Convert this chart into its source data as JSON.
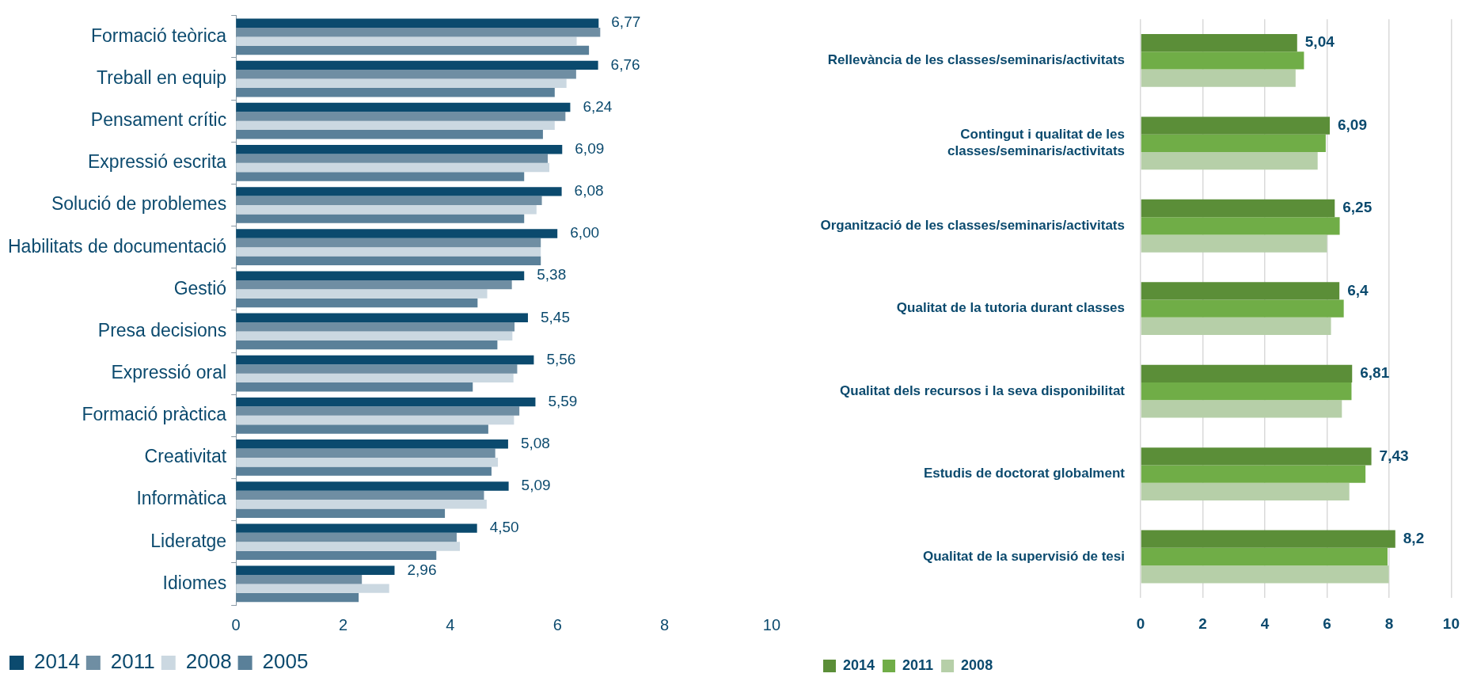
{
  "chart_data": [
    {
      "type": "bar",
      "orientation": "horizontal",
      "categories": [
        "Formació teòrica",
        "Treball en equip",
        "Pensament crític",
        "Expressió escrita",
        "Solució de problemes",
        "Habilitats de documentació",
        "Gestió",
        "Presa decisions",
        "Expressió oral",
        "Formació pràctica",
        "Creativitat",
        "Informàtica",
        "Lideratge",
        "Idiomes"
      ],
      "series": [
        {
          "name": "2014",
          "color": "#0b4a6e",
          "values": [
            6.77,
            6.76,
            6.24,
            6.09,
            6.08,
            6.0,
            5.38,
            5.45,
            5.56,
            5.59,
            5.08,
            5.09,
            4.5,
            2.96
          ],
          "value_labels": [
            "6,77",
            "6,76",
            "6,24",
            "6,09",
            "6,08",
            "6,00",
            "5,38",
            "5,45",
            "5,56",
            "5,59",
            "5,08",
            "5,09",
            "4,50",
            "2,96"
          ]
        },
        {
          "name": "2011",
          "color": "#6f8ea3",
          "values": [
            6.8,
            6.35,
            6.15,
            5.82,
            5.71,
            5.69,
            5.15,
            5.2,
            5.25,
            5.29,
            4.84,
            4.63,
            4.12,
            2.35
          ]
        },
        {
          "name": "2008",
          "color": "#cbd8e1",
          "values": [
            6.36,
            6.17,
            5.95,
            5.85,
            5.61,
            5.69,
            4.69,
            5.16,
            5.18,
            5.19,
            4.89,
            4.68,
            4.18,
            2.86
          ]
        },
        {
          "name": "2005",
          "color": "#5a8099",
          "values": [
            6.59,
            5.95,
            5.73,
            5.38,
            5.38,
            5.69,
            4.51,
            4.88,
            4.42,
            4.71,
            4.77,
            3.9,
            3.74,
            2.29
          ]
        }
      ],
      "xlim": [
        0,
        10
      ],
      "xticks": [
        0,
        2,
        4,
        6,
        8,
        10
      ],
      "grid": false,
      "legend": "bottom"
    },
    {
      "type": "bar",
      "orientation": "horizontal",
      "categories": [
        "Rellevància de les classes/seminaris/activitats",
        "Contingut i qualitat de les\nclasses/seminaris/activitats",
        "Organització de les classes/seminaris/activitats",
        "Qualitat de la tutoria durant classes",
        "Qualitat dels recursos i la seva disponibilitat",
        "Estudis de doctorat globalment",
        "Qualitat de la supervisió de tesi"
      ],
      "series": [
        {
          "name": "2014",
          "color": "#5b8e38",
          "values": [
            5.04,
            6.09,
            6.25,
            6.4,
            6.81,
            7.43,
            8.2
          ],
          "value_labels": [
            "5,04",
            "6,09",
            "6,25",
            "6,4",
            "6,81",
            "7,43",
            "8,2"
          ]
        },
        {
          "name": "2011",
          "color": "#70ad47",
          "values": [
            5.26,
            5.96,
            6.41,
            6.54,
            6.79,
            7.24,
            7.95
          ]
        },
        {
          "name": "2008",
          "color": "#b6cfa8",
          "values": [
            4.99,
            5.7,
            6.0,
            6.13,
            6.48,
            6.72,
            7.99
          ]
        }
      ],
      "xlim": [
        0,
        10
      ],
      "xticks": [
        0,
        2,
        4,
        6,
        8,
        10
      ],
      "grid": "x",
      "legend": "bottom"
    }
  ]
}
